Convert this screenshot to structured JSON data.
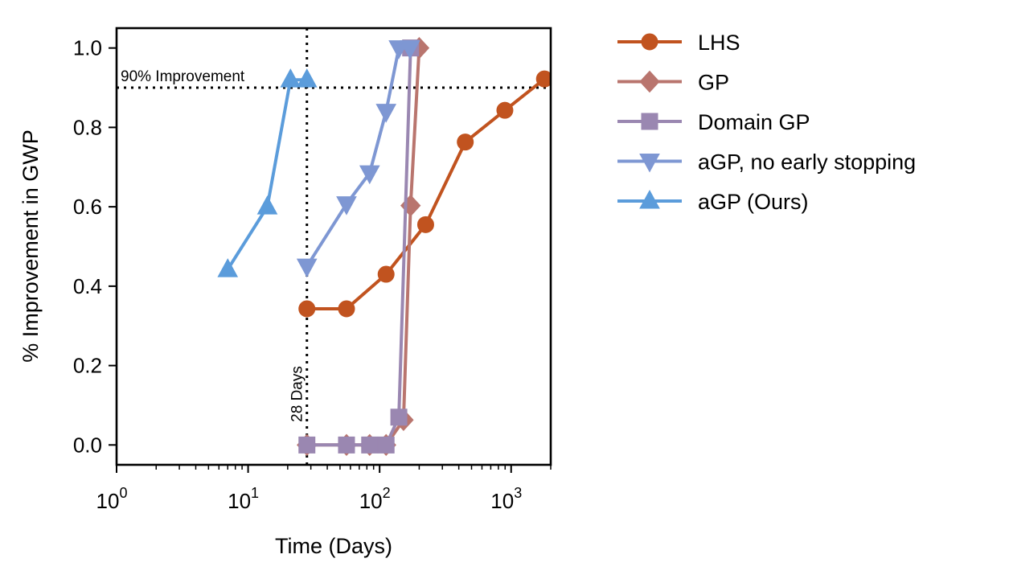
{
  "chart_data": {
    "type": "line",
    "xscale": "log",
    "xlabel": "Time (Days)",
    "ylabel": "% Improvement in GWP",
    "xlim": [
      1,
      2000
    ],
    "ylim": [
      -0.05,
      1.05
    ],
    "grid": false,
    "legend_position": "outside-right",
    "x_ticks": [
      {
        "value": 1,
        "base": "10",
        "exp": "0"
      },
      {
        "value": 10,
        "base": "10",
        "exp": "1"
      },
      {
        "value": 100,
        "base": "10",
        "exp": "2"
      },
      {
        "value": 1000,
        "base": "10",
        "exp": "3"
      }
    ],
    "y_ticks": [
      {
        "value": 0.0,
        "label": "0.0"
      },
      {
        "value": 0.2,
        "label": "0.2"
      },
      {
        "value": 0.4,
        "label": "0.4"
      },
      {
        "value": 0.6,
        "label": "0.6"
      },
      {
        "value": 0.8,
        "label": "0.8"
      },
      {
        "value": 1.0,
        "label": "1.0"
      }
    ],
    "reference_lines": [
      {
        "orientation": "horizontal",
        "value": 0.9,
        "label": "90% Improvement",
        "style": "dotted"
      },
      {
        "orientation": "vertical",
        "value": 28,
        "label": "28 Days",
        "style": "dotted"
      }
    ],
    "series": [
      {
        "name": "LHS",
        "color": "#c1531f",
        "marker": "circle",
        "points": [
          [
            28,
            0.343
          ],
          [
            56,
            0.343
          ],
          [
            112,
            0.43
          ],
          [
            224,
            0.555
          ],
          [
            448,
            0.763
          ],
          [
            896,
            0.843
          ],
          [
            1792,
            0.922
          ]
        ]
      },
      {
        "name": "GP",
        "color": "#b9756e",
        "marker": "diamond",
        "points": [
          [
            28,
            0.0
          ],
          [
            56,
            0.0
          ],
          [
            84,
            0.0
          ],
          [
            112,
            0.0
          ],
          [
            152,
            0.063
          ],
          [
            172,
            0.603
          ],
          [
            200,
            1.0
          ]
        ]
      },
      {
        "name": "Domain GP",
        "color": "#9a87b1",
        "marker": "square",
        "points": [
          [
            28,
            0.0
          ],
          [
            56,
            0.0
          ],
          [
            84,
            0.0
          ],
          [
            112,
            0.0
          ],
          [
            140,
            0.07
          ],
          [
            172,
            1.0
          ]
        ]
      },
      {
        "name": "aGP, no early stopping",
        "color": "#7e97d3",
        "marker": "triangle-down",
        "points": [
          [
            28,
            0.45
          ],
          [
            56,
            0.607
          ],
          [
            84,
            0.685
          ],
          [
            112,
            0.84
          ],
          [
            140,
            1.0
          ],
          [
            170,
            1.0
          ]
        ]
      },
      {
        "name": "aGP (Ours)",
        "color": "#5b9cdb",
        "marker": "triangle-up",
        "points": [
          [
            7,
            0.442
          ],
          [
            14,
            0.6
          ],
          [
            21,
            0.92
          ],
          [
            28,
            0.92
          ]
        ]
      }
    ]
  }
}
